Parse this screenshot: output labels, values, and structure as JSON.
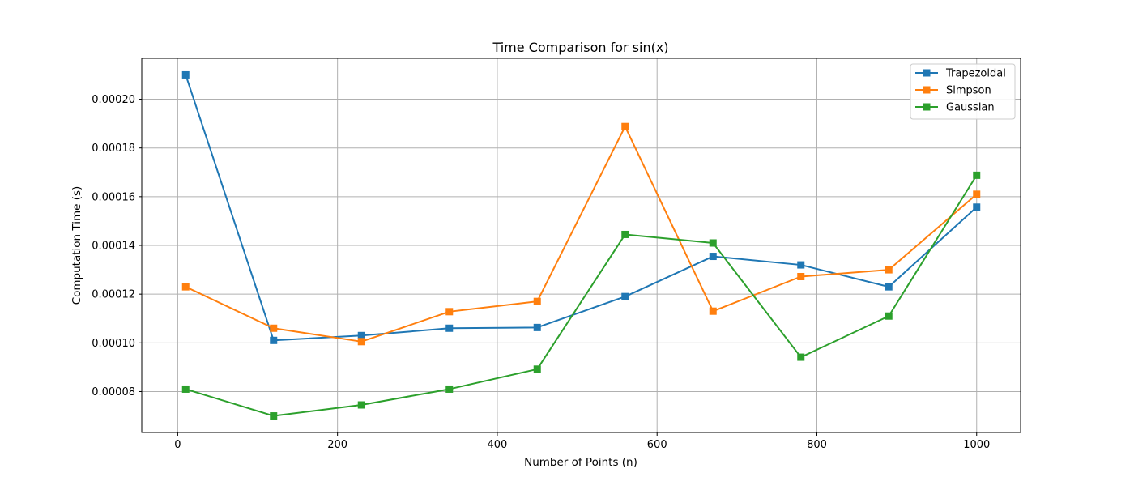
{
  "chart_data": {
    "type": "line",
    "title": "Time Comparison for sin(x)",
    "xlabel": "Number of Points (n)",
    "ylabel": "Computation Time (s)",
    "x": [
      10,
      120,
      230,
      340,
      450,
      560,
      670,
      780,
      890,
      1000
    ],
    "series": [
      {
        "name": "Trapezoidal",
        "color": "#1f77b4",
        "marker": "square",
        "values": [
          0.00021,
          0.000101,
          0.000103,
          0.000106,
          0.0001063,
          0.000119,
          0.0001355,
          0.000132,
          0.000123,
          0.0001557
        ]
      },
      {
        "name": "Simpson",
        "color": "#ff7f0e",
        "marker": "square",
        "values": [
          0.000123,
          0.000106,
          0.0001005,
          0.0001128,
          0.000117,
          0.0001888,
          0.000113,
          0.0001272,
          0.00013,
          0.000161
        ]
      },
      {
        "name": "Gaussian",
        "color": "#2ca02c",
        "marker": "square",
        "values": [
          8.1e-05,
          7e-05,
          7.45e-05,
          8.1e-05,
          8.92e-05,
          0.0001445,
          0.000141,
          9.41e-05,
          0.000111,
          0.0001688
        ]
      }
    ],
    "xlim": [
      -45,
      1055
    ],
    "ylim": [
      6.32e-05,
      0.0002168
    ],
    "xticks": [
      0,
      200,
      400,
      600,
      800,
      1000
    ],
    "xtick_labels": [
      "0",
      "200",
      "400",
      "600",
      "800",
      "1000"
    ],
    "yticks": [
      8e-05,
      0.0001,
      0.00012,
      0.00014,
      0.00016,
      0.00018,
      0.0002
    ],
    "ytick_labels": [
      "0.00008",
      "0.00010",
      "0.00012",
      "0.00014",
      "0.00016",
      "0.00018",
      "0.00020"
    ],
    "grid": true,
    "legend_position": "top-right",
    "grid_color": "#b0b0b0"
  }
}
